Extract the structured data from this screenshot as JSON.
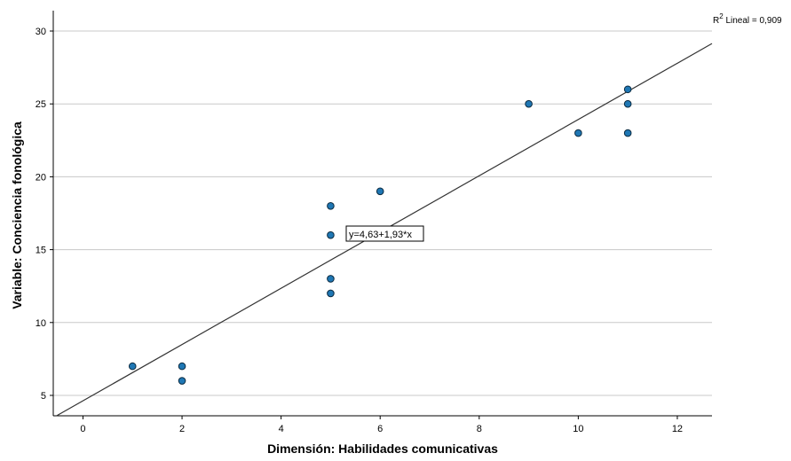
{
  "chart_data": {
    "type": "scatter",
    "xlabel": "Dimensión: Habilidades comunicativas",
    "ylabel": "Variable: Conciencia fonológica",
    "xlim": [
      -0.6,
      12.7
    ],
    "ylim": [
      3.6,
      31.4
    ],
    "xticks": [
      0,
      2,
      4,
      6,
      8,
      10,
      12
    ],
    "yticks": [
      5,
      10,
      15,
      20,
      25,
      30
    ],
    "grid": "horizontal",
    "points": [
      {
        "x": 1,
        "y": 7
      },
      {
        "x": 2,
        "y": 7
      },
      {
        "x": 2,
        "y": 6
      },
      {
        "x": 5,
        "y": 18
      },
      {
        "x": 5,
        "y": 16
      },
      {
        "x": 5,
        "y": 13
      },
      {
        "x": 5,
        "y": 12
      },
      {
        "x": 6,
        "y": 19
      },
      {
        "x": 9,
        "y": 25
      },
      {
        "x": 10,
        "y": 23
      },
      {
        "x": 11,
        "y": 26
      },
      {
        "x": 11,
        "y": 25
      },
      {
        "x": 11,
        "y": 23
      }
    ],
    "fit": {
      "intercept": 4.63,
      "slope": 1.93
    },
    "fit_label": "y=4,63+1,93*x",
    "r2_prefix": "R",
    "r2_sup": "2",
    "r2_label": " Lineal = 0,909",
    "point_color": "#1f77b4",
    "line_color": "#333333",
    "grid_color": "#c8c8c8"
  }
}
